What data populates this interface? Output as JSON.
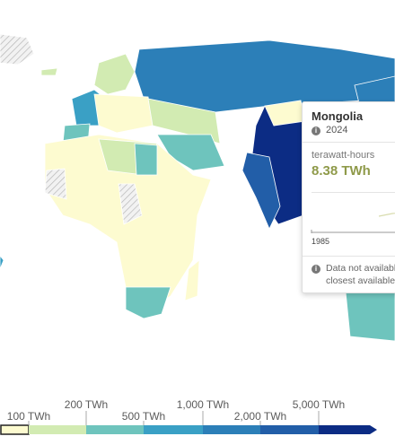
{
  "tooltip": {
    "title": "Mongolia",
    "year": "2024",
    "unit": "terawatt-hours",
    "value": "8.38 TWh",
    "axis_start": "1985",
    "note_lines": [
      "Data not available",
      "closest available d"
    ]
  },
  "legend": {
    "labels": [
      "100 TWh",
      "200 TWh",
      "500 TWh",
      "1,000 TWh",
      "2,000 TWh",
      "5,000 TWh"
    ]
  }
}
